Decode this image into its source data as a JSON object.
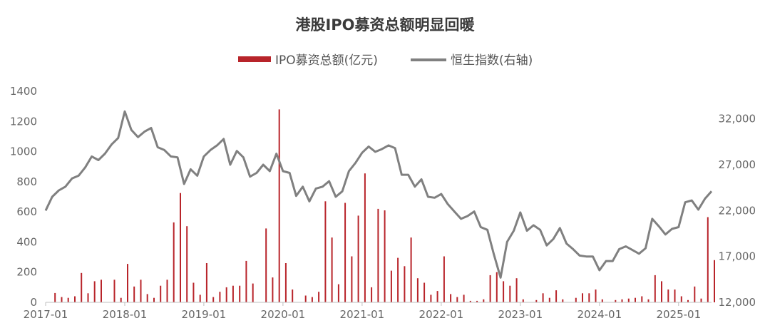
{
  "chart_data": {
    "type": "bar+line",
    "title": "港股IPO募资总额明显回暖",
    "legend_position": "top-center",
    "grid": false,
    "colors": {
      "bars": "#b8242a",
      "line": "#808080"
    },
    "series": [
      {
        "name": "IPO募资总额(亿元)",
        "type": "bar",
        "axis": "left",
        "points": [
          [
            "2017-02",
            62
          ],
          [
            "2017-03",
            35
          ],
          [
            "2017-04",
            30
          ],
          [
            "2017-05",
            40
          ],
          [
            "2017-06",
            195
          ],
          [
            "2017-07",
            60
          ],
          [
            "2017-08",
            140
          ],
          [
            "2017-09",
            150
          ],
          [
            "2017-11",
            150
          ],
          [
            "2017-12",
            30
          ],
          [
            "2018-01",
            255
          ],
          [
            "2018-02",
            105
          ],
          [
            "2018-03",
            150
          ],
          [
            "2018-04",
            55
          ],
          [
            "2018-05",
            30
          ],
          [
            "2018-06",
            110
          ],
          [
            "2018-07",
            150
          ],
          [
            "2018-08",
            530
          ],
          [
            "2018-09",
            725
          ],
          [
            "2018-10",
            505
          ],
          [
            "2018-11",
            130
          ],
          [
            "2018-12",
            50
          ],
          [
            "2019-01",
            260
          ],
          [
            "2019-02",
            35
          ],
          [
            "2019-03",
            70
          ],
          [
            "2019-04",
            100
          ],
          [
            "2019-05",
            110
          ],
          [
            "2019-06",
            110
          ],
          [
            "2019-07",
            275
          ],
          [
            "2019-08",
            125
          ],
          [
            "2019-10",
            490
          ],
          [
            "2019-11",
            165
          ],
          [
            "2019-12",
            1280
          ],
          [
            "2020-01",
            260
          ],
          [
            "2020-02",
            85
          ],
          [
            "2020-04",
            45
          ],
          [
            "2020-05",
            35
          ],
          [
            "2020-06",
            70
          ],
          [
            "2020-07",
            670
          ],
          [
            "2020-08",
            430
          ],
          [
            "2020-09",
            120
          ],
          [
            "2020-10",
            660
          ],
          [
            "2020-11",
            305
          ],
          [
            "2020-12",
            575
          ],
          [
            "2021-01",
            855
          ],
          [
            "2021-02",
            100
          ],
          [
            "2021-03",
            620
          ],
          [
            "2021-04",
            610
          ],
          [
            "2021-05",
            210
          ],
          [
            "2021-06",
            295
          ],
          [
            "2021-07",
            240
          ],
          [
            "2021-08",
            430
          ],
          [
            "2021-09",
            160
          ],
          [
            "2021-10",
            130
          ],
          [
            "2021-11",
            50
          ],
          [
            "2021-12",
            75
          ],
          [
            "2022-01",
            305
          ],
          [
            "2022-02",
            55
          ],
          [
            "2022-03",
            35
          ],
          [
            "2022-04",
            50
          ],
          [
            "2022-05",
            10
          ],
          [
            "2022-06",
            10
          ],
          [
            "2022-07",
            20
          ],
          [
            "2022-08",
            180
          ],
          [
            "2022-09",
            200
          ],
          [
            "2022-10",
            140
          ],
          [
            "2022-11",
            110
          ],
          [
            "2022-12",
            160
          ],
          [
            "2023-01",
            20
          ],
          [
            "2023-03",
            15
          ],
          [
            "2023-04",
            60
          ],
          [
            "2023-05",
            30
          ],
          [
            "2023-06",
            80
          ],
          [
            "2023-07",
            20
          ],
          [
            "2023-09",
            30
          ],
          [
            "2023-10",
            60
          ],
          [
            "2023-11",
            60
          ],
          [
            "2023-12",
            85
          ],
          [
            "2024-01",
            20
          ],
          [
            "2024-03",
            15
          ],
          [
            "2024-04",
            20
          ],
          [
            "2024-05",
            25
          ],
          [
            "2024-06",
            30
          ],
          [
            "2024-07",
            40
          ],
          [
            "2024-08",
            20
          ],
          [
            "2024-09",
            180
          ],
          [
            "2024-10",
            140
          ],
          [
            "2024-11",
            85
          ],
          [
            "2024-12",
            85
          ],
          [
            "2025-01",
            40
          ],
          [
            "2025-02",
            15
          ],
          [
            "2025-03",
            105
          ],
          [
            "2025-04",
            25
          ],
          [
            "2025-05",
            565
          ],
          [
            "2025-06",
            280
          ]
        ]
      },
      {
        "name": "恒生指数(右轴)",
        "type": "line",
        "axis": "right",
        "points": [
          [
            "2017-01",
            22000
          ],
          [
            "2017-02",
            23500
          ],
          [
            "2017-03",
            24200
          ],
          [
            "2017-04",
            24600
          ],
          [
            "2017-05",
            25500
          ],
          [
            "2017-06",
            25800
          ],
          [
            "2017-07",
            26700
          ],
          [
            "2017-08",
            27900
          ],
          [
            "2017-09",
            27500
          ],
          [
            "2017-10",
            28200
          ],
          [
            "2017-11",
            29200
          ],
          [
            "2017-12",
            29900
          ],
          [
            "2018-01",
            32800
          ],
          [
            "2018-02",
            30800
          ],
          [
            "2018-03",
            30000
          ],
          [
            "2018-04",
            30600
          ],
          [
            "2018-05",
            31000
          ],
          [
            "2018-06",
            28900
          ],
          [
            "2018-07",
            28600
          ],
          [
            "2018-08",
            27900
          ],
          [
            "2018-09",
            27800
          ],
          [
            "2018-10",
            24900
          ],
          [
            "2018-11",
            26500
          ],
          [
            "2018-12",
            25800
          ],
          [
            "2019-01",
            27900
          ],
          [
            "2019-02",
            28600
          ],
          [
            "2019-03",
            29100
          ],
          [
            "2019-04",
            29800
          ],
          [
            "2019-05",
            27000
          ],
          [
            "2019-06",
            28500
          ],
          [
            "2019-07",
            27800
          ],
          [
            "2019-08",
            25700
          ],
          [
            "2019-09",
            26100
          ],
          [
            "2019-10",
            27000
          ],
          [
            "2019-11",
            26300
          ],
          [
            "2019-12",
            28200
          ],
          [
            "2020-01",
            26300
          ],
          [
            "2020-02",
            26100
          ],
          [
            "2020-03",
            23600
          ],
          [
            "2020-04",
            24600
          ],
          [
            "2020-05",
            23000
          ],
          [
            "2020-06",
            24400
          ],
          [
            "2020-07",
            24600
          ],
          [
            "2020-08",
            25200
          ],
          [
            "2020-09",
            23500
          ],
          [
            "2020-10",
            24100
          ],
          [
            "2020-11",
            26300
          ],
          [
            "2020-12",
            27200
          ],
          [
            "2021-01",
            28300
          ],
          [
            "2021-02",
            28980
          ],
          [
            "2021-03",
            28400
          ],
          [
            "2021-04",
            28700
          ],
          [
            "2021-05",
            29100
          ],
          [
            "2021-06",
            28800
          ],
          [
            "2021-07",
            25900
          ],
          [
            "2021-08",
            25900
          ],
          [
            "2021-09",
            24600
          ],
          [
            "2021-10",
            25400
          ],
          [
            "2021-11",
            23500
          ],
          [
            "2021-12",
            23400
          ],
          [
            "2022-01",
            23800
          ],
          [
            "2022-02",
            22700
          ],
          [
            "2022-03",
            21900
          ],
          [
            "2022-04",
            21100
          ],
          [
            "2022-05",
            21400
          ],
          [
            "2022-06",
            21900
          ],
          [
            "2022-07",
            20200
          ],
          [
            "2022-08",
            19900
          ],
          [
            "2022-09",
            17200
          ],
          [
            "2022-10",
            14700
          ],
          [
            "2022-11",
            18600
          ],
          [
            "2022-12",
            19800
          ],
          [
            "2023-01",
            21800
          ],
          [
            "2023-02",
            19800
          ],
          [
            "2023-03",
            20400
          ],
          [
            "2023-04",
            19900
          ],
          [
            "2023-05",
            18200
          ],
          [
            "2023-06",
            18900
          ],
          [
            "2023-07",
            20100
          ],
          [
            "2023-08",
            18400
          ],
          [
            "2023-09",
            17800
          ],
          [
            "2023-10",
            17100
          ],
          [
            "2023-11",
            17000
          ],
          [
            "2023-12",
            17000
          ],
          [
            "2024-01",
            15500
          ],
          [
            "2024-02",
            16500
          ],
          [
            "2024-03",
            16500
          ],
          [
            "2024-04",
            17800
          ],
          [
            "2024-05",
            18100
          ],
          [
            "2024-06",
            17700
          ],
          [
            "2024-07",
            17300
          ],
          [
            "2024-08",
            17900
          ],
          [
            "2024-09",
            21100
          ],
          [
            "2024-10",
            20300
          ],
          [
            "2024-11",
            19400
          ],
          [
            "2024-12",
            20000
          ],
          [
            "2025-01",
            20200
          ],
          [
            "2025-02",
            22900
          ],
          [
            "2025-03",
            23100
          ],
          [
            "2025-04",
            22100
          ],
          [
            "2025-05",
            23300
          ],
          [
            "2025-06",
            24100
          ]
        ]
      }
    ],
    "y_left": {
      "ylim": [
        0,
        1400
      ],
      "ticks": [
        "0",
        "200",
        "400",
        "600",
        "800",
        "1000",
        "1200",
        "1400"
      ]
    },
    "y_right": {
      "ylim": [
        12000,
        35000
      ],
      "ticks": [
        "12,000",
        "17,000",
        "22,000",
        "27,000",
        "32,000"
      ]
    },
    "x_axis": {
      "range": [
        "2017-01",
        "2025-06"
      ],
      "ticks": [
        "2017-01",
        "2018-01",
        "2019-01",
        "2020-01",
        "2021-01",
        "2022-01",
        "2023-01",
        "2024-01",
        "2025-01"
      ]
    }
  }
}
